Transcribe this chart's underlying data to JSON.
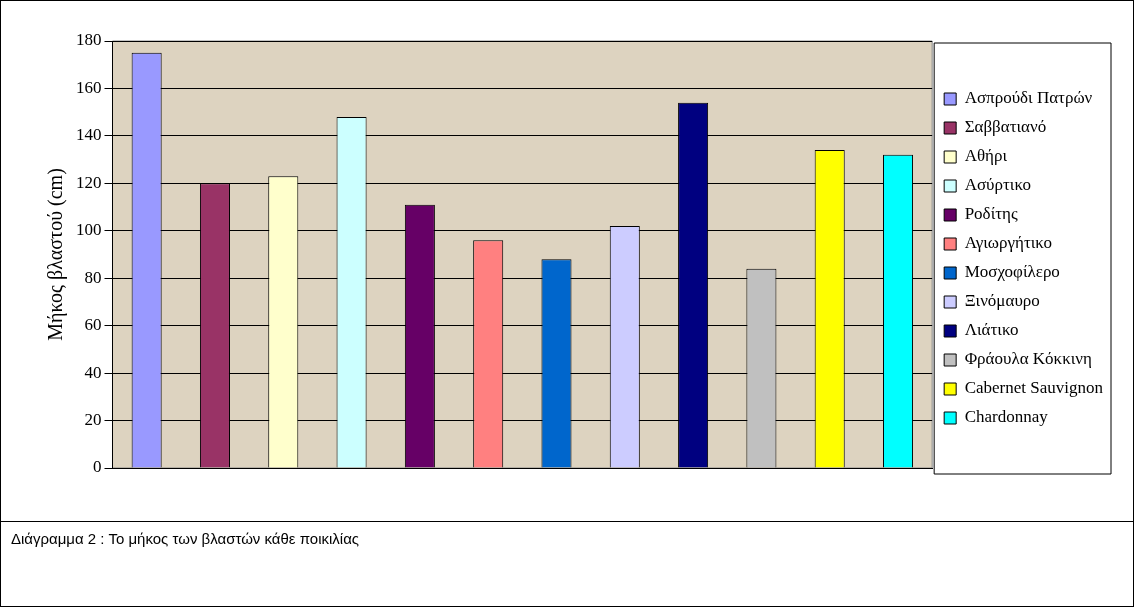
{
  "chart_data": {
    "type": "bar",
    "ylabel": "Μήκος βλαστού (cm)",
    "categories": [
      null,
      null,
      null,
      null,
      null,
      null,
      null,
      null,
      null,
      null,
      null,
      null
    ],
    "series": [
      {
        "name": "Ασπρούδι Πατρών",
        "color": "#9999ff",
        "values": [
          175,
          null,
          null,
          null,
          null,
          null,
          null,
          null,
          null,
          null,
          null,
          null
        ]
      },
      {
        "name": "Σαββατιανό",
        "color": "#993366",
        "values": [
          null,
          120,
          null,
          null,
          null,
          null,
          null,
          null,
          null,
          null,
          null,
          null
        ]
      },
      {
        "name": "Αθήρι",
        "color": "#ffffcc",
        "values": [
          null,
          null,
          123,
          null,
          null,
          null,
          null,
          null,
          null,
          null,
          null,
          null
        ]
      },
      {
        "name": "Ασύρτικο",
        "color": "#ccffff",
        "values": [
          null,
          null,
          null,
          148,
          null,
          null,
          null,
          null,
          null,
          null,
          null,
          null
        ]
      },
      {
        "name": "Ροδίτης",
        "color": "#660066",
        "values": [
          null,
          null,
          null,
          null,
          111,
          null,
          null,
          null,
          null,
          null,
          null,
          null
        ]
      },
      {
        "name": "Αγιωργήτικο",
        "color": "#ff8080",
        "values": [
          null,
          null,
          null,
          null,
          null,
          96,
          null,
          null,
          null,
          null,
          null,
          null
        ]
      },
      {
        "name": "Μοσχοφίλερο",
        "color": "#0066cc",
        "values": [
          null,
          null,
          null,
          null,
          null,
          null,
          88,
          null,
          null,
          null,
          null,
          null
        ]
      },
      {
        "name": "Ξινόμαυρο",
        "color": "#ccccff",
        "values": [
          null,
          null,
          null,
          null,
          null,
          null,
          null,
          102,
          null,
          null,
          null,
          null
        ]
      },
      {
        "name": "Λιάτικο",
        "color": "#000080",
        "values": [
          null,
          null,
          null,
          null,
          null,
          null,
          null,
          null,
          154,
          null,
          null,
          null
        ]
      },
      {
        "name": "Φράουλα Κόκκινη",
        "color": "#c0c0c0",
        "values": [
          null,
          null,
          null,
          null,
          null,
          null,
          null,
          null,
          null,
          84,
          null,
          null
        ]
      },
      {
        "name": "Cabernet Sauvignon",
        "color": "#ffff00",
        "values": [
          null,
          null,
          null,
          null,
          null,
          null,
          null,
          null,
          null,
          null,
          134,
          null
        ]
      },
      {
        "name": "Chardonnay",
        "color": "#00ffff",
        "values": [
          null,
          null,
          null,
          null,
          null,
          null,
          null,
          null,
          null,
          null,
          null,
          132
        ]
      }
    ],
    "ylim": [
      0,
      180
    ],
    "yticks": [
      0,
      20,
      40,
      60,
      80,
      100,
      120,
      140,
      160,
      180
    ],
    "grid": "y",
    "legend": "right",
    "tick_labels": "y",
    "annotations": [
      "Διάγραμμα 2 : Το μήκος των βλαστών κάθε ποικιλίας"
    ]
  }
}
